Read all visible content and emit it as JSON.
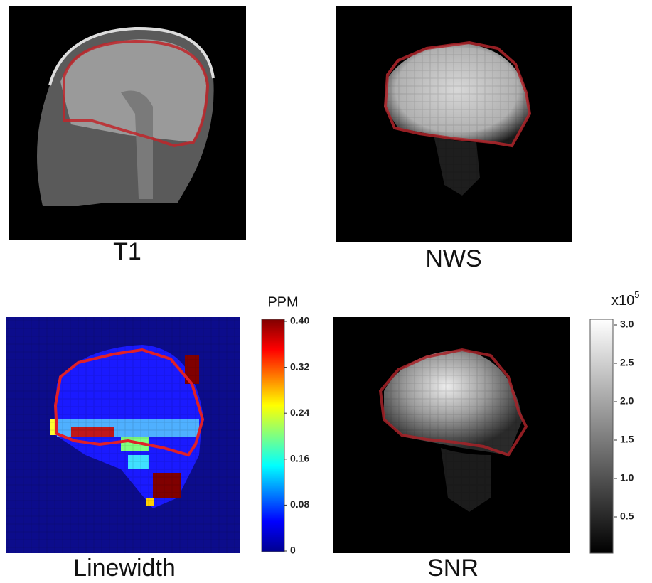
{
  "panels": [
    {
      "label": "T1"
    },
    {
      "label": "NWS"
    },
    {
      "label": "Linewidth"
    },
    {
      "label": "SNR"
    }
  ],
  "colorbars": [
    {
      "title": "PPM",
      "ticks": [
        "0.40",
        "0.32",
        "0.24",
        "0.16",
        "0.08",
        "0"
      ]
    },
    {
      "title": "x10",
      "title_superscript": "5",
      "ticks": [
        "3.0",
        "2.5",
        "2.0",
        "1.5",
        "1.0",
        "0.5"
      ]
    }
  ]
}
